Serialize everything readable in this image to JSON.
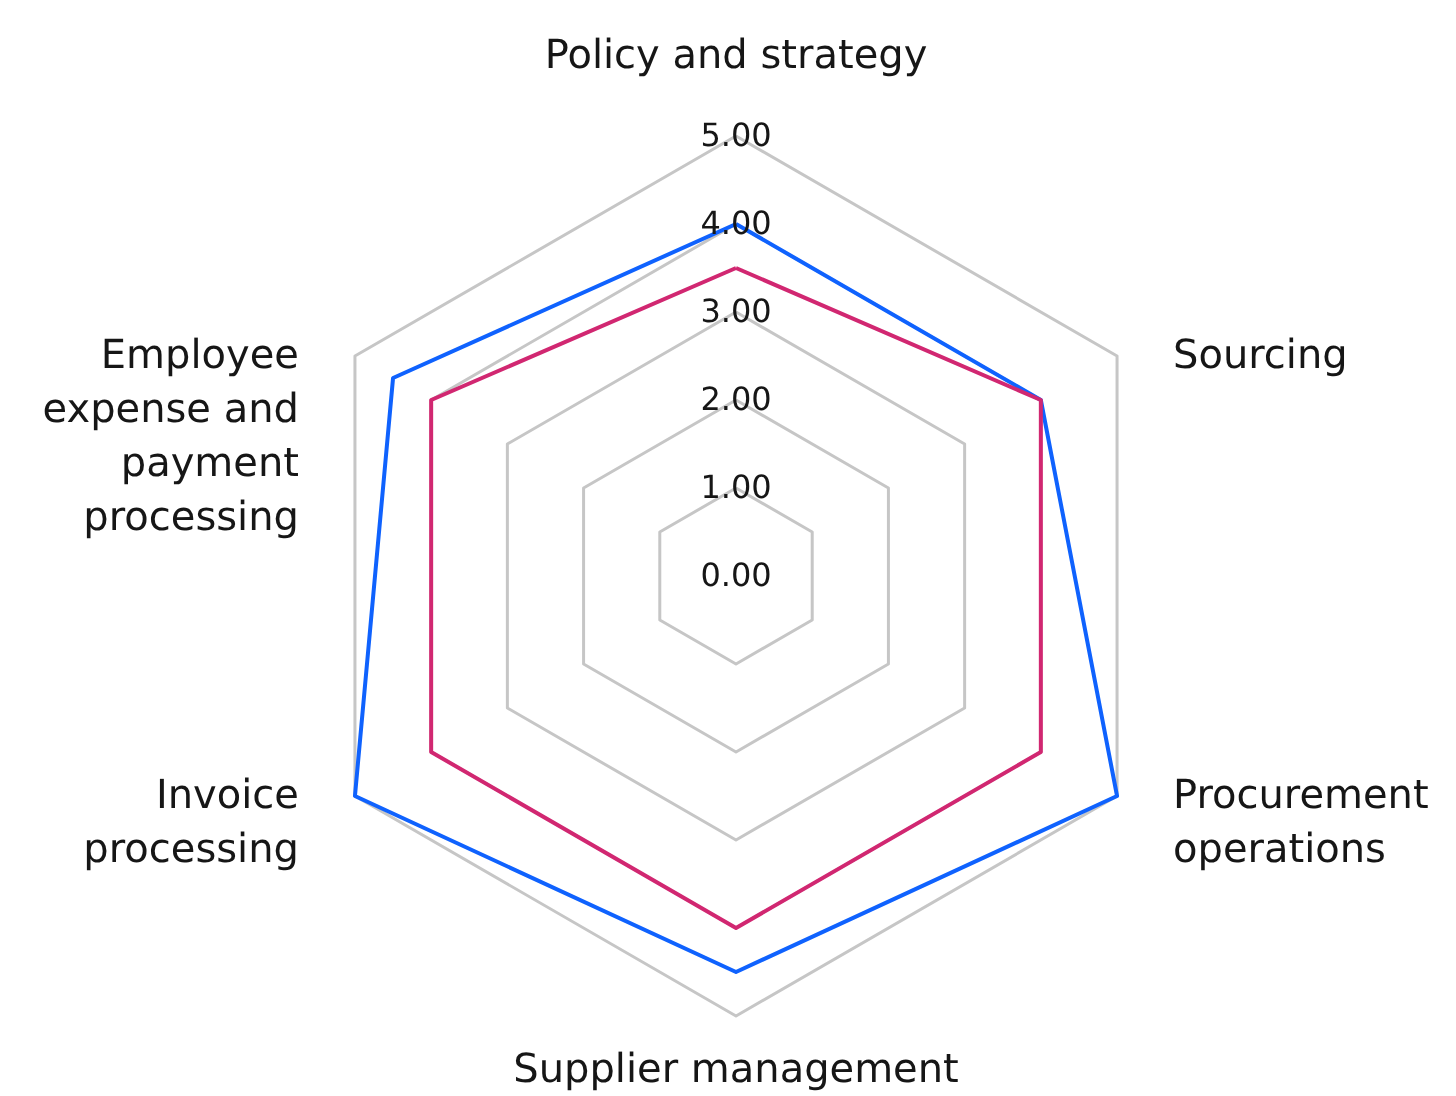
{
  "chart_data": {
    "type": "radar",
    "categories": [
      "Policy and strategy",
      "Sourcing",
      "Procurement operations",
      "Supplier management",
      "Invoice processing",
      "Employee expense and payment processing"
    ],
    "series": [
      {
        "color": "#0f62fe",
        "values": [
          4.0,
          4.0,
          5.0,
          4.5,
          5.0,
          4.5
        ]
      },
      {
        "color": "#d12771",
        "values": [
          3.5,
          4.0,
          4.0,
          4.0,
          4.0,
          4.0
        ]
      }
    ],
    "ylim": [
      0,
      5
    ],
    "yticks": [
      {
        "value": 0,
        "label": "0.00"
      },
      {
        "value": 1,
        "label": "1.00"
      },
      {
        "value": 2,
        "label": "2.00"
      },
      {
        "value": 3,
        "label": "3.00"
      },
      {
        "value": 4,
        "label": "4.00"
      },
      {
        "value": 5,
        "label": "5.00"
      }
    ],
    "grid": true
  }
}
